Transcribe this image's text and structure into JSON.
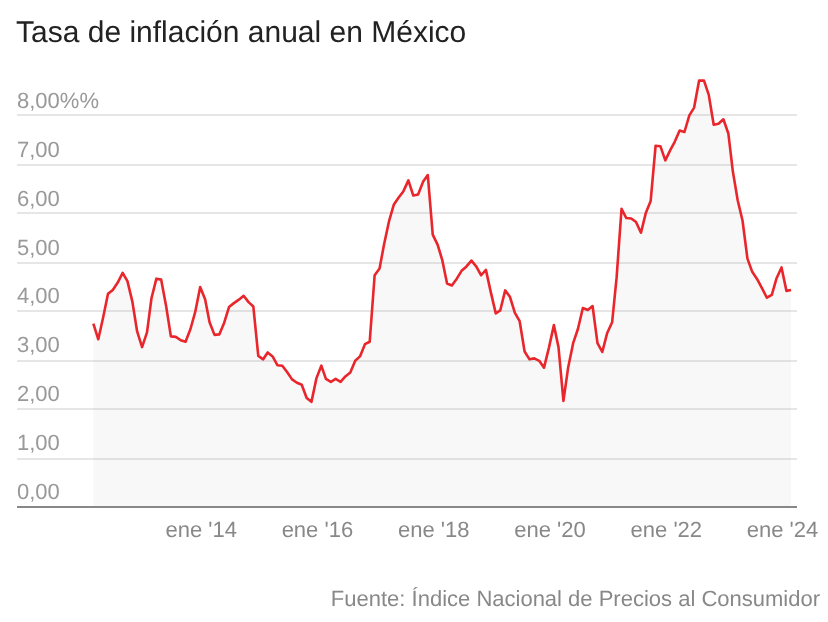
{
  "chart_data": {
    "type": "area",
    "title": "Tasa de inflación anual en México",
    "annotations": [
      "Fuente: Índice Nacional de Precios al Consumidor"
    ],
    "x": [
      "2012-03",
      "2012-04",
      "2012-05",
      "2012-06",
      "2012-07",
      "2012-08",
      "2012-09",
      "2012-10",
      "2012-11",
      "2012-12",
      "2013-01",
      "2013-02",
      "2013-03",
      "2013-04",
      "2013-05",
      "2013-06",
      "2013-07",
      "2013-08",
      "2013-09",
      "2013-10",
      "2013-11",
      "2013-12",
      "2014-01",
      "2014-02",
      "2014-03",
      "2014-04",
      "2014-05",
      "2014-06",
      "2014-07",
      "2014-08",
      "2014-09",
      "2014-10",
      "2014-11",
      "2014-12",
      "2015-01",
      "2015-02",
      "2015-03",
      "2015-04",
      "2015-05",
      "2015-06",
      "2015-07",
      "2015-08",
      "2015-09",
      "2015-10",
      "2015-11",
      "2015-12",
      "2016-01",
      "2016-02",
      "2016-03",
      "2016-04",
      "2016-05",
      "2016-06",
      "2016-07",
      "2016-08",
      "2016-09",
      "2016-10",
      "2016-11",
      "2016-12",
      "2017-01",
      "2017-02",
      "2017-03",
      "2017-04",
      "2017-05",
      "2017-06",
      "2017-07",
      "2017-08",
      "2017-09",
      "2017-10",
      "2017-11",
      "2017-12",
      "2018-01",
      "2018-02",
      "2018-03",
      "2018-04",
      "2018-05",
      "2018-06",
      "2018-07",
      "2018-08",
      "2018-09",
      "2018-10",
      "2018-11",
      "2018-12",
      "2019-01",
      "2019-02",
      "2019-03",
      "2019-04",
      "2019-05",
      "2019-06",
      "2019-07",
      "2019-08",
      "2019-09",
      "2019-10",
      "2019-11",
      "2019-12",
      "2020-01",
      "2020-02",
      "2020-03",
      "2020-04",
      "2020-05",
      "2020-06",
      "2020-07",
      "2020-08",
      "2020-09",
      "2020-10",
      "2020-11",
      "2020-12",
      "2021-01",
      "2021-02",
      "2021-03",
      "2021-04",
      "2021-05",
      "2021-06",
      "2021-07",
      "2021-08",
      "2021-09",
      "2021-10",
      "2021-11",
      "2021-12",
      "2022-01",
      "2022-02",
      "2022-03",
      "2022-04",
      "2022-05",
      "2022-06",
      "2022-07",
      "2022-08",
      "2022-09",
      "2022-10",
      "2022-11",
      "2022-12",
      "2023-01",
      "2023-02",
      "2023-03",
      "2023-04",
      "2023-05",
      "2023-06",
      "2023-07",
      "2023-08",
      "2023-09",
      "2023-10",
      "2023-11",
      "2023-12",
      "2024-01",
      "2024-02",
      "2024-03"
    ],
    "series": [
      {
        "color": "#e8262b",
        "values": [
          3.73,
          3.41,
          3.85,
          4.34,
          4.42,
          4.57,
          4.77,
          4.6,
          4.18,
          3.57,
          3.25,
          3.55,
          4.25,
          4.65,
          4.63,
          4.09,
          3.47,
          3.46,
          3.39,
          3.36,
          3.62,
          3.97,
          4.48,
          4.23,
          3.76,
          3.5,
          3.51,
          3.75,
          4.07,
          4.15,
          4.22,
          4.3,
          4.17,
          4.08,
          3.07,
          3.0,
          3.14,
          3.06,
          2.88,
          2.87,
          2.74,
          2.59,
          2.52,
          2.48,
          2.21,
          2.13,
          2.61,
          2.87,
          2.6,
          2.54,
          2.6,
          2.54,
          2.65,
          2.73,
          2.97,
          3.06,
          3.31,
          3.36,
          4.72,
          4.86,
          5.35,
          5.82,
          6.16,
          6.31,
          6.44,
          6.66,
          6.35,
          6.37,
          6.63,
          6.77,
          5.55,
          5.34,
          5.04,
          4.55,
          4.51,
          4.65,
          4.81,
          4.9,
          5.02,
          4.9,
          4.72,
          4.83,
          4.37,
          3.94,
          4.0,
          4.41,
          4.28,
          3.95,
          3.78,
          3.16,
          3.0,
          3.02,
          2.97,
          2.83,
          3.24,
          3.7,
          3.25,
          2.15,
          2.84,
          3.33,
          3.62,
          4.05,
          4.01,
          4.09,
          3.33,
          3.15,
          3.54,
          3.76,
          4.67,
          6.08,
          5.89,
          5.88,
          5.81,
          5.59,
          6.0,
          6.24,
          7.37,
          7.36,
          7.07,
          7.28,
          7.45,
          7.68,
          7.65,
          7.99,
          8.15,
          8.7,
          8.7,
          8.41,
          7.8,
          7.82,
          7.91,
          7.62,
          6.85,
          6.25,
          5.84,
          5.06,
          4.79,
          4.64,
          4.45,
          4.26,
          4.32,
          4.66,
          4.88,
          4.4,
          4.42
        ]
      }
    ],
    "xlim": [
      "2010-11",
      "2024-04"
    ],
    "xticks": [
      {
        "value": "2014-01",
        "label": "ene '14"
      },
      {
        "value": "2016-01",
        "label": "ene '16"
      },
      {
        "value": "2018-01",
        "label": "ene '18"
      },
      {
        "value": "2020-01",
        "label": "ene '20"
      },
      {
        "value": "2022-01",
        "label": "ene '22"
      },
      {
        "value": "2024-01",
        "label": "ene '24"
      }
    ],
    "ylim": [
      0,
      9
    ],
    "yticks": [
      {
        "value": 0,
        "label": "0,00"
      },
      {
        "value": 1,
        "label": "1,00"
      },
      {
        "value": 2,
        "label": "2,00"
      },
      {
        "value": 3,
        "label": "3,00"
      },
      {
        "value": 4,
        "label": "4,00"
      },
      {
        "value": 5,
        "label": "5,00"
      },
      {
        "value": 6,
        "label": "6,00"
      },
      {
        "value": 7,
        "label": "7,00"
      },
      {
        "value": 8,
        "label": "8,00%%"
      }
    ],
    "grid": "y"
  }
}
